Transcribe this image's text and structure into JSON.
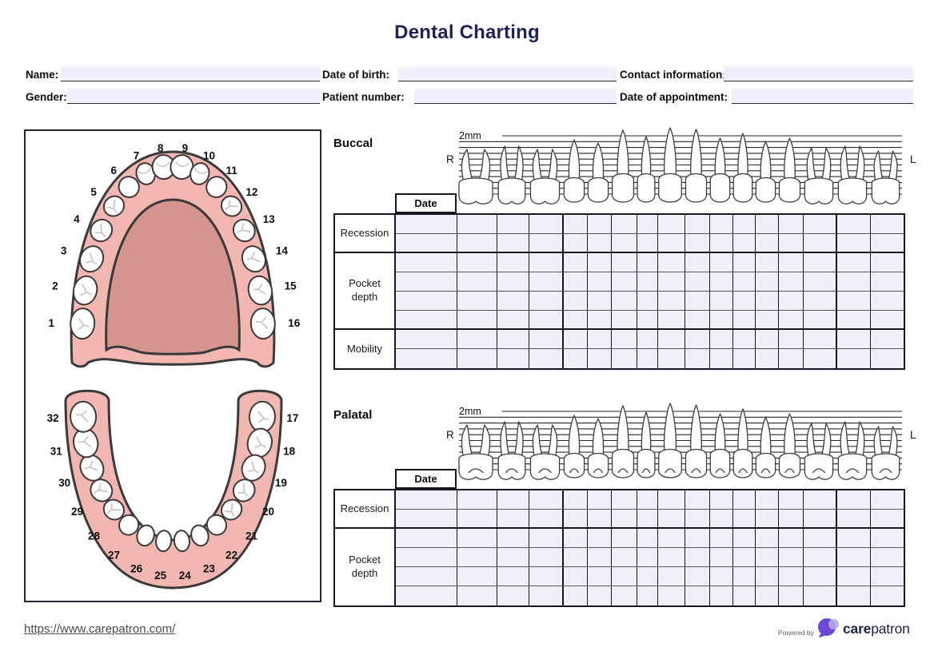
{
  "title": "Dental Charting",
  "form": {
    "fields": [
      {
        "label": "Name:",
        "value": ""
      },
      {
        "label": "Date of birth:",
        "value": ""
      },
      {
        "label": "Contact information:",
        "value": ""
      },
      {
        "label": "Gender:",
        "value": ""
      },
      {
        "label": "Patient number:",
        "value": ""
      },
      {
        "label": "Date of appointment:",
        "value": ""
      }
    ]
  },
  "diagram": {
    "upper_teeth": [
      "1",
      "2",
      "3",
      "4",
      "5",
      "6",
      "7",
      "8",
      "9",
      "10",
      "11",
      "12",
      "13",
      "14",
      "15",
      "16"
    ],
    "lower_teeth": [
      "17",
      "18",
      "19",
      "20",
      "21",
      "22",
      "23",
      "24",
      "25",
      "26",
      "27",
      "28",
      "29",
      "30",
      "31",
      "32"
    ]
  },
  "sections": [
    {
      "name": "Buccal",
      "scale_label": "2mm",
      "right_label": "R",
      "left_label": "L",
      "date_label": "Date",
      "rows": [
        {
          "label": "Recession",
          "span": 2
        },
        {
          "label": "Pocket depth",
          "span": 4
        },
        {
          "label": "Mobility",
          "span": 2
        }
      ]
    },
    {
      "name": "Palatal",
      "scale_label": "2mm",
      "right_label": "R",
      "left_label": "L",
      "date_label": "Date",
      "rows": [
        {
          "label": "Recession",
          "span": 2
        },
        {
          "label": "Pocket depth",
          "span": 4
        }
      ]
    }
  ],
  "footer": {
    "link": "https://www.carepatron.com/",
    "powered_by": "Powered by",
    "brand_bold": "care",
    "brand_light": "patron"
  },
  "colors": {
    "accent_navy": "#1c2357",
    "gum_pink": "#f3b7b1",
    "palate_rose": "#d6948e",
    "cell_lavender": "#eff1fa",
    "border_dark": "#17171f",
    "logo_purple": "#6d48d8",
    "logo_purple_light": "#b7a7ea"
  }
}
